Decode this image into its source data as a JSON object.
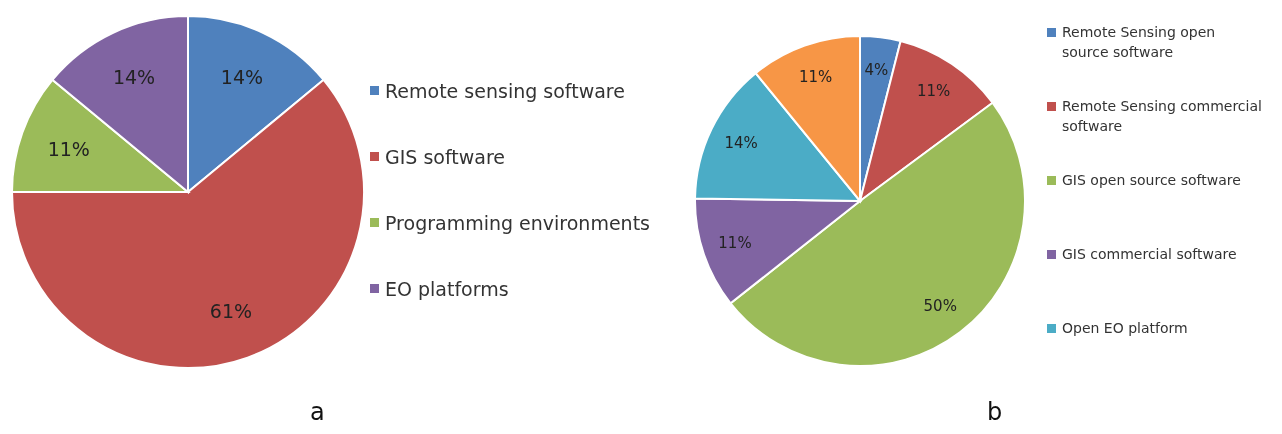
{
  "chart_data": [
    {
      "type": "pie",
      "categories": [
        "Remote sensing software",
        "GIS software",
        "Programming environments",
        "EO platforms"
      ],
      "values": [
        14,
        61,
        11,
        14
      ],
      "colors": [
        "#4f81bd",
        "#c0504d",
        "#9bbb59",
        "#8064a2"
      ],
      "value_labels": [
        "14%",
        "61%",
        "11%",
        "14%"
      ],
      "legend": "right",
      "annotations": [
        "a"
      ]
    },
    {
      "type": "pie",
      "categories": [
        "Remote Sensing open source software",
        "Remote Sensing commercial software",
        "GIS open source software",
        "GIS commercial software",
        "Open EO platform",
        null
      ],
      "values": [
        4,
        11,
        50,
        11,
        14,
        11
      ],
      "colors": [
        "#4f81bd",
        "#c0504d",
        "#9bbb59",
        "#8064a2",
        "#4bacc6",
        "#f79646"
      ],
      "value_labels": [
        "4%",
        "11%",
        "50%",
        "11%",
        "14%",
        "11%"
      ],
      "legend": "right",
      "annotations": [
        "b"
      ]
    }
  ]
}
